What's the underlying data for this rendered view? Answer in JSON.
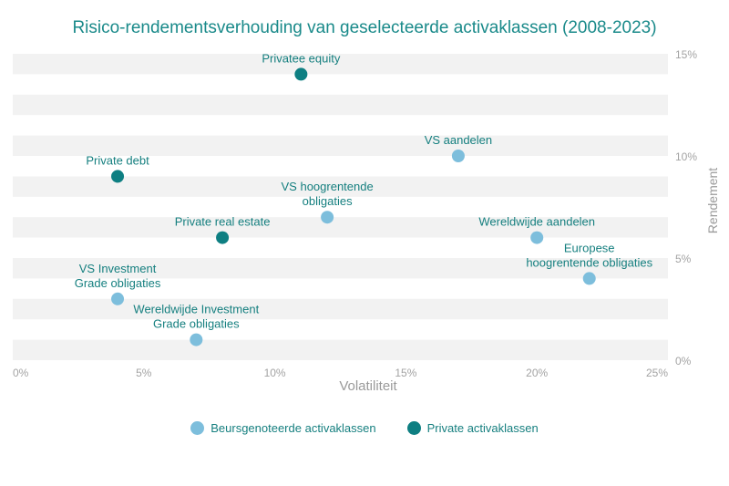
{
  "chart_data": {
    "type": "scatter",
    "title": "Risico-rendementsverhouding van geselecteerde activaklassen (2008-2023)",
    "xlabel": "Volatiliteit",
    "ylabel": "Rendement",
    "xlim": [
      0,
      25
    ],
    "ylim": [
      0,
      15
    ],
    "x_ticks": [
      "0%",
      "5%",
      "10%",
      "15%",
      "20%",
      "25%"
    ],
    "y_ticks": [
      "0%",
      "5%",
      "10%",
      "15%"
    ],
    "grid": "horizontal-bands",
    "legend_position": "bottom",
    "series": [
      {
        "name": "Beursgenoteerde activaklassen",
        "color": "#7dbedc",
        "points": [
          {
            "label": "VS aandelen",
            "x": 17,
            "y": 10
          },
          {
            "label": "VS hoogrentende obligaties",
            "x": 12,
            "y": 7
          },
          {
            "label": "Wereldwijde aandelen",
            "x": 20,
            "y": 6
          },
          {
            "label": "Europese hoogrentende obligaties",
            "x": 22,
            "y": 4
          },
          {
            "label": "VS Investment Grade obligaties",
            "x": 4,
            "y": 3
          },
          {
            "label": "Wereldwijde Investment Grade obligaties",
            "x": 7,
            "y": 1
          }
        ]
      },
      {
        "name": "Private activaklassen",
        "color": "#0e7f82",
        "points": [
          {
            "label": "Privatee equity",
            "x": 11,
            "y": 14
          },
          {
            "label": "Private debt",
            "x": 4,
            "y": 9
          },
          {
            "label": "Private real estate",
            "x": 8,
            "y": 6
          }
        ]
      }
    ]
  }
}
